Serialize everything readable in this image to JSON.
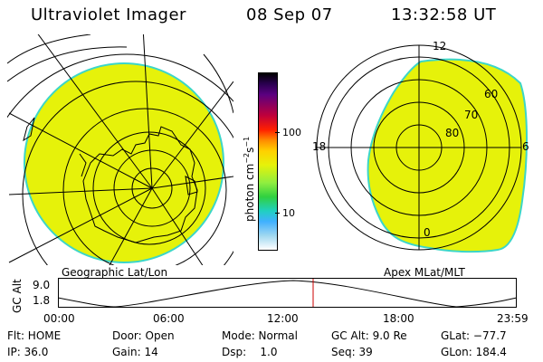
{
  "header": {
    "title": "Ultraviolet Imager",
    "date": "08 Sep 07",
    "time": "13:32:58 UT"
  },
  "left_map": {
    "label": "Geographic Lat/Lon"
  },
  "right_map": {
    "label": "Apex MLat/MLT",
    "mlt_labels": [
      "12",
      "18",
      "6",
      "0"
    ],
    "mlat_labels": [
      "60",
      "70",
      "80"
    ]
  },
  "colorbar": {
    "unit_label": "photon cm",
    "unit_exp1": "−2",
    "unit_s": "s",
    "unit_exp2": "−1",
    "ticks": [
      "100",
      "10"
    ],
    "scale": "log"
  },
  "altitude_plot": {
    "ylabel": "GC Alt",
    "yticks": [
      "9.0",
      "1.8"
    ],
    "xticks": [
      "00:00",
      "06:00",
      "12:00",
      "18:00",
      "23:59"
    ],
    "current_marker_color": "#cc0000"
  },
  "info": {
    "flt": "Flt: HOME",
    "door": "Door: Open",
    "mode": "Mode: Normal",
    "gc_alt": "GC Alt: 9.0 Re",
    "glat": "GLat: −77.7",
    "ip": "IP: 36.0",
    "gain": "Gain: 14",
    "dsp": "Dsp:    1.0",
    "seq": "Seq: 39",
    "glon": "GLon: 184.4"
  },
  "colors": {
    "fill_yellow": "#e6f20a",
    "fill_edge": "#3cd6c8"
  }
}
